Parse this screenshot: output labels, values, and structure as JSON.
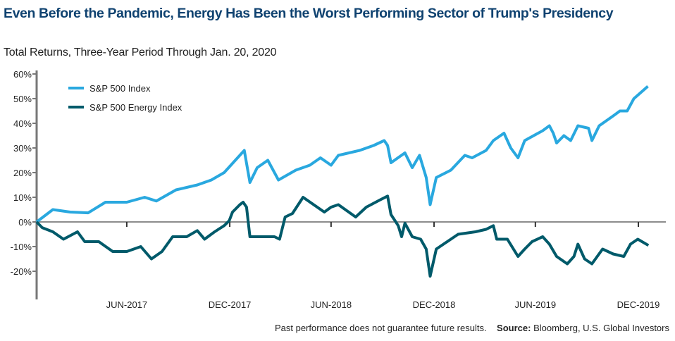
{
  "title": "Even Before the Pandemic, Energy Has Been the Worst Performing Sector of Trump's Presidency",
  "subtitle": "Total Returns, Three-Year Period Through Jan. 20, 2020",
  "footer": {
    "disclaimer": "Past performance does not guarantee future results.",
    "source_label": "Source:",
    "source_text": "Bloomberg, U.S. Global Investors"
  },
  "chart_data": {
    "type": "line",
    "title": "Even Before the Pandemic, Energy Has Been the Worst Performing Sector of Trump's Presidency",
    "subtitle": "Total Returns, Three-Year Period Through Jan. 20, 2020",
    "xlabel": "",
    "ylabel": "",
    "xlim": [
      "2017-01-20",
      "2020-01-20"
    ],
    "ylim": [
      -30,
      60
    ],
    "y_ticks": [
      60,
      50,
      40,
      30,
      20,
      10,
      0,
      -10,
      -20
    ],
    "y_tick_labels": [
      "60%",
      "50%",
      "40%",
      "30%",
      "20%",
      "10%",
      "0%",
      "-10%",
      "-20%"
    ],
    "x_ticks": [
      "2017-06-30",
      "2017-12-31",
      "2018-06-30",
      "2018-12-31",
      "2019-06-30",
      "2019-12-31"
    ],
    "x_tick_labels": [
      "JUN-2017",
      "DEC-2017",
      "JUN-2018",
      "DEC-2018",
      "JUN-2019",
      "DEC-2019"
    ],
    "grid": false,
    "legend_position": "top-left",
    "series": [
      {
        "name": "S&P 500 Index",
        "color": "#29a8df",
        "points": [
          [
            "2017-01-20",
            0
          ],
          [
            "2017-02-18",
            5
          ],
          [
            "2017-03-21",
            4
          ],
          [
            "2017-04-22",
            3.7
          ],
          [
            "2017-05-23",
            8
          ],
          [
            "2017-06-30",
            8
          ],
          [
            "2017-08-01",
            10
          ],
          [
            "2017-08-22",
            8.5
          ],
          [
            "2017-09-26",
            13
          ],
          [
            "2017-11-03",
            15
          ],
          [
            "2017-11-28",
            17
          ],
          [
            "2017-12-21",
            20
          ],
          [
            "2018-01-26",
            29
          ],
          [
            "2018-02-05",
            16
          ],
          [
            "2018-02-18",
            22
          ],
          [
            "2018-03-09",
            25
          ],
          [
            "2018-03-28",
            17
          ],
          [
            "2018-04-28",
            21
          ],
          [
            "2018-05-23",
            23
          ],
          [
            "2018-06-11",
            26
          ],
          [
            "2018-06-30",
            23
          ],
          [
            "2018-07-13",
            27
          ],
          [
            "2018-08-20",
            29
          ],
          [
            "2018-09-14",
            31
          ],
          [
            "2018-10-03",
            33
          ],
          [
            "2018-10-09",
            31
          ],
          [
            "2018-10-15",
            24
          ],
          [
            "2018-11-09",
            28
          ],
          [
            "2018-11-22",
            22
          ],
          [
            "2018-12-05",
            27
          ],
          [
            "2018-12-17",
            18
          ],
          [
            "2018-12-24",
            7
          ],
          [
            "2019-01-04",
            18
          ],
          [
            "2019-01-30",
            21
          ],
          [
            "2019-02-24",
            27
          ],
          [
            "2019-03-09",
            26
          ],
          [
            "2019-04-03",
            29
          ],
          [
            "2019-04-16",
            33
          ],
          [
            "2019-05-05",
            36
          ],
          [
            "2019-05-17",
            30
          ],
          [
            "2019-05-30",
            26
          ],
          [
            "2019-06-11",
            33
          ],
          [
            "2019-07-13",
            37
          ],
          [
            "2019-07-25",
            39
          ],
          [
            "2019-08-01",
            36
          ],
          [
            "2019-08-07",
            32
          ],
          [
            "2019-08-20",
            35
          ],
          [
            "2019-09-01",
            33
          ],
          [
            "2019-09-14",
            39
          ],
          [
            "2019-10-03",
            38
          ],
          [
            "2019-10-09",
            33
          ],
          [
            "2019-10-22",
            39
          ],
          [
            "2019-11-16",
            43
          ],
          [
            "2019-11-28",
            45
          ],
          [
            "2019-12-11",
            45
          ],
          [
            "2019-12-23",
            50
          ],
          [
            "2020-01-17",
            55
          ]
        ]
      },
      {
        "name": "S&P 500 Energy Index",
        "color": "#005a6a",
        "points": [
          [
            "2017-01-20",
            0
          ],
          [
            "2017-01-30",
            -2.3
          ],
          [
            "2017-02-18",
            -4
          ],
          [
            "2017-03-09",
            -7
          ],
          [
            "2017-04-03",
            -4
          ],
          [
            "2017-04-16",
            -8
          ],
          [
            "2017-05-11",
            -8
          ],
          [
            "2017-06-05",
            -12
          ],
          [
            "2017-06-30",
            -12
          ],
          [
            "2017-07-25",
            -10
          ],
          [
            "2017-08-13",
            -15
          ],
          [
            "2017-09-01",
            -12
          ],
          [
            "2017-09-20",
            -6
          ],
          [
            "2017-10-15",
            -6
          ],
          [
            "2017-11-03",
            -3.5
          ],
          [
            "2017-11-16",
            -7
          ],
          [
            "2017-12-04",
            -4
          ],
          [
            "2017-12-21",
            -1.5
          ],
          [
            "2017-12-30",
            0.5
          ],
          [
            "2018-01-05",
            4
          ],
          [
            "2018-01-18",
            7
          ],
          [
            "2018-01-24",
            8
          ],
          [
            "2018-01-30",
            6
          ],
          [
            "2018-02-05",
            -6
          ],
          [
            "2018-02-24",
            -6
          ],
          [
            "2018-03-21",
            -6
          ],
          [
            "2018-03-30",
            -7
          ],
          [
            "2018-04-09",
            2
          ],
          [
            "2018-04-22",
            3.4
          ],
          [
            "2018-05-11",
            10
          ],
          [
            "2018-05-30",
            7
          ],
          [
            "2018-06-18",
            4
          ],
          [
            "2018-06-30",
            6
          ],
          [
            "2018-07-13",
            7
          ],
          [
            "2018-08-13",
            2
          ],
          [
            "2018-09-01",
            6
          ],
          [
            "2018-09-26",
            9
          ],
          [
            "2018-10-09",
            10.5
          ],
          [
            "2018-10-15",
            3
          ],
          [
            "2018-10-28",
            -1.5
          ],
          [
            "2018-11-03",
            -6
          ],
          [
            "2018-11-09",
            -0.5
          ],
          [
            "2018-11-22",
            -6
          ],
          [
            "2018-12-07",
            -7
          ],
          [
            "2018-12-17",
            -11
          ],
          [
            "2018-12-24",
            -22
          ],
          [
            "2019-01-04",
            -11
          ],
          [
            "2019-01-17",
            -9
          ],
          [
            "2019-01-30",
            -7
          ],
          [
            "2019-02-12",
            -5
          ],
          [
            "2019-03-15",
            -4
          ],
          [
            "2019-04-03",
            -3
          ],
          [
            "2019-04-16",
            -1.5
          ],
          [
            "2019-04-22",
            -7
          ],
          [
            "2019-05-11",
            -7
          ],
          [
            "2019-05-30",
            -14
          ],
          [
            "2019-06-11",
            -11
          ],
          [
            "2019-06-24",
            -8
          ],
          [
            "2019-07-13",
            -6
          ],
          [
            "2019-07-25",
            -9
          ],
          [
            "2019-08-07",
            -14
          ],
          [
            "2019-08-26",
            -17
          ],
          [
            "2019-09-07",
            -14
          ],
          [
            "2019-09-14",
            -9
          ],
          [
            "2019-09-26",
            -15
          ],
          [
            "2019-10-09",
            -17
          ],
          [
            "2019-10-28",
            -11
          ],
          [
            "2019-11-16",
            -13
          ],
          [
            "2019-12-05",
            -14
          ],
          [
            "2019-12-17",
            -9
          ],
          [
            "2019-12-30",
            -7
          ],
          [
            "2020-01-18",
            -9.5
          ]
        ]
      }
    ]
  }
}
